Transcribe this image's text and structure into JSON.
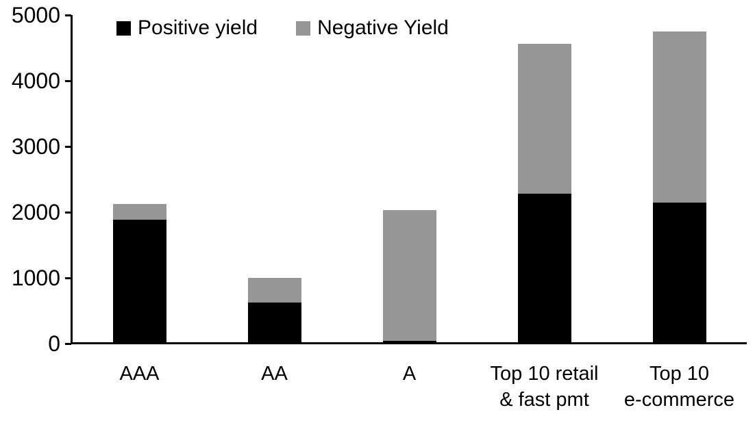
{
  "chart_data": {
    "type": "bar",
    "stacked": true,
    "title": "",
    "xlabel": "",
    "ylabel": "",
    "categories": [
      "AAA",
      "AA",
      "A",
      "Top 10 retail\n& fast pmt",
      "Top 10\ne-commerce"
    ],
    "series": [
      {
        "name": "Positive yield",
        "color": "#000000",
        "values": [
          1890,
          620,
          45,
          2280,
          2150
        ]
      },
      {
        "name": "Negative Yield",
        "color": "#969696",
        "values": [
          240,
          380,
          1985,
          2280,
          2600
        ]
      }
    ],
    "ylim": [
      0,
      5000
    ],
    "yticks": [
      0,
      1000,
      2000,
      3000,
      4000,
      5000
    ],
    "legend_position": "top-left-inside",
    "grid": false,
    "colors": {
      "axis": "#000000",
      "positive": "#000000",
      "negative": "#969696",
      "background": "#ffffff"
    }
  }
}
